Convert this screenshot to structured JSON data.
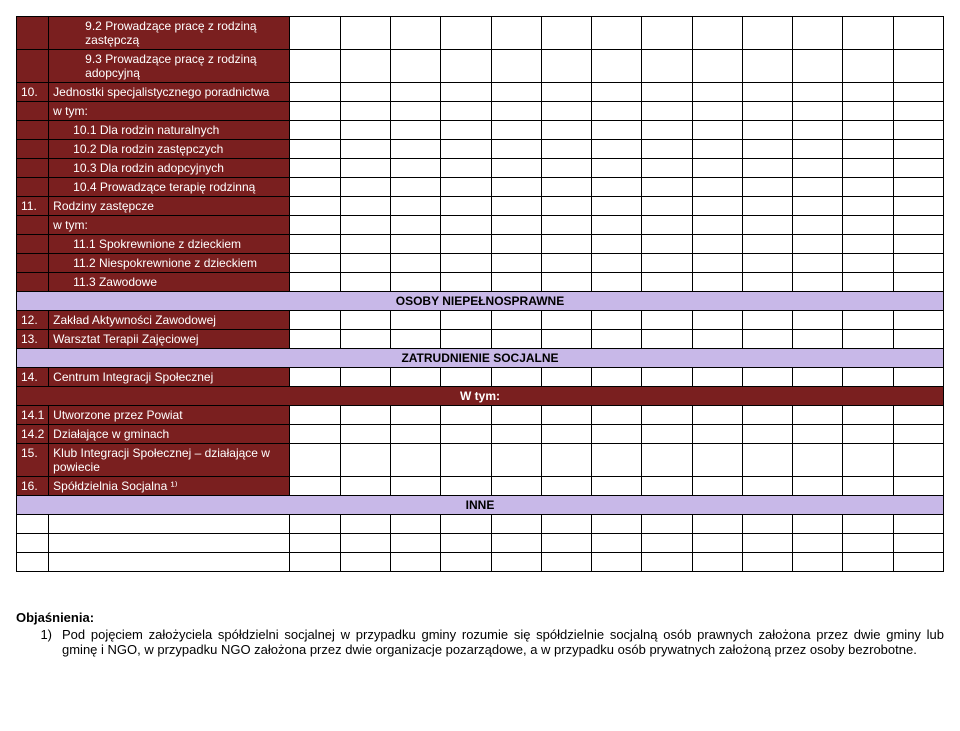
{
  "colors": {
    "maroon_bg": "#7a1f1f",
    "maroon_fg": "#ffffff",
    "lavender_bg": "#c8b8e8",
    "border": "#000000",
    "page_bg": "#ffffff"
  },
  "typography": {
    "font_family": "Arial, sans-serif",
    "font_size_body": 12,
    "font_size_explain": 13
  },
  "layout": {
    "num_col_width": 32,
    "label_col_width": 240,
    "data_cols": 13,
    "data_col_width": 50
  },
  "rows": [
    {
      "type": "maroon",
      "num": "",
      "label": "9.2 Prowadzące pracę z rodziną zastępczą",
      "indent": 2
    },
    {
      "type": "maroon",
      "num": "",
      "label": "9.3 Prowadzące pracę z rodziną adopcyjną",
      "indent": 2
    },
    {
      "type": "maroon",
      "num": "10.",
      "label": "Jednostki specjalistycznego poradnictwa",
      "indent": 0
    },
    {
      "type": "maroon",
      "num": "",
      "label": "w tym:",
      "indent": 0
    },
    {
      "type": "maroon",
      "num": "",
      "label": "10.1 Dla rodzin naturalnych",
      "indent": 1
    },
    {
      "type": "maroon",
      "num": "",
      "label": "10.2 Dla rodzin zastępczych",
      "indent": 1
    },
    {
      "type": "maroon",
      "num": "",
      "label": "10.3 Dla rodzin adopcyjnych",
      "indent": 1
    },
    {
      "type": "maroon",
      "num": "",
      "label": "10.4 Prowadzące terapię rodzinną",
      "indent": 1
    },
    {
      "type": "maroon",
      "num": "11.",
      "label": "Rodziny zastępcze",
      "indent": 0
    },
    {
      "type": "maroon",
      "num": "",
      "label": "w tym:",
      "indent": 0
    },
    {
      "type": "maroon",
      "num": "",
      "label": "11.1 Spokrewnione z dzieckiem",
      "indent": 1
    },
    {
      "type": "maroon",
      "num": "",
      "label": "11.2 Niespokrewnione z dzieckiem",
      "indent": 1
    },
    {
      "type": "maroon",
      "num": "",
      "label": "11.3 Zawodowe",
      "indent": 1
    },
    {
      "type": "lavender",
      "text": "OSOBY NIEPEŁNOSPRAWNE"
    },
    {
      "type": "maroon",
      "num": "12.",
      "label": "Zakład Aktywności Zawodowej",
      "indent": 0
    },
    {
      "type": "maroon",
      "num": "13.",
      "label": "Warsztat Terapii Zajęciowej",
      "indent": 0
    },
    {
      "type": "lavender",
      "text": "ZATRUDNIENIE SOCJALNE"
    },
    {
      "type": "maroon",
      "num": "14.",
      "label": "Centrum Integracji Społecznej",
      "indent": 0
    },
    {
      "type": "subhead",
      "text": "W tym:"
    },
    {
      "type": "maroon",
      "num": "14.1",
      "label": "Utworzone przez Powiat",
      "indent": 0
    },
    {
      "type": "maroon",
      "num": "14.2",
      "label": "Działające w gminach",
      "indent": 0
    },
    {
      "type": "maroon",
      "num": "15.",
      "label": "Klub Integracji Społecznej – działające w powiecie",
      "indent": 0
    },
    {
      "type": "maroon",
      "num": "16.",
      "label": "Spółdzielnia Socjalna ¹⁾",
      "indent": 0
    },
    {
      "type": "lavender",
      "text": "INNE"
    },
    {
      "type": "blank"
    },
    {
      "type": "blank"
    },
    {
      "type": "blank"
    }
  ],
  "explanation": {
    "title": "Objaśnienia:",
    "num": "1)",
    "text": "Pod pojęciem założyciela spółdzielni socjalnej w przypadku gminy rozumie się spółdzielnie socjalną osób prawnych założona przez dwie gminy lub gminę i NGO, w przypadku NGO założona przez dwie organizacje pozarządowe, a w przypadku osób prywatnych założoną przez osoby bezrobotne."
  }
}
